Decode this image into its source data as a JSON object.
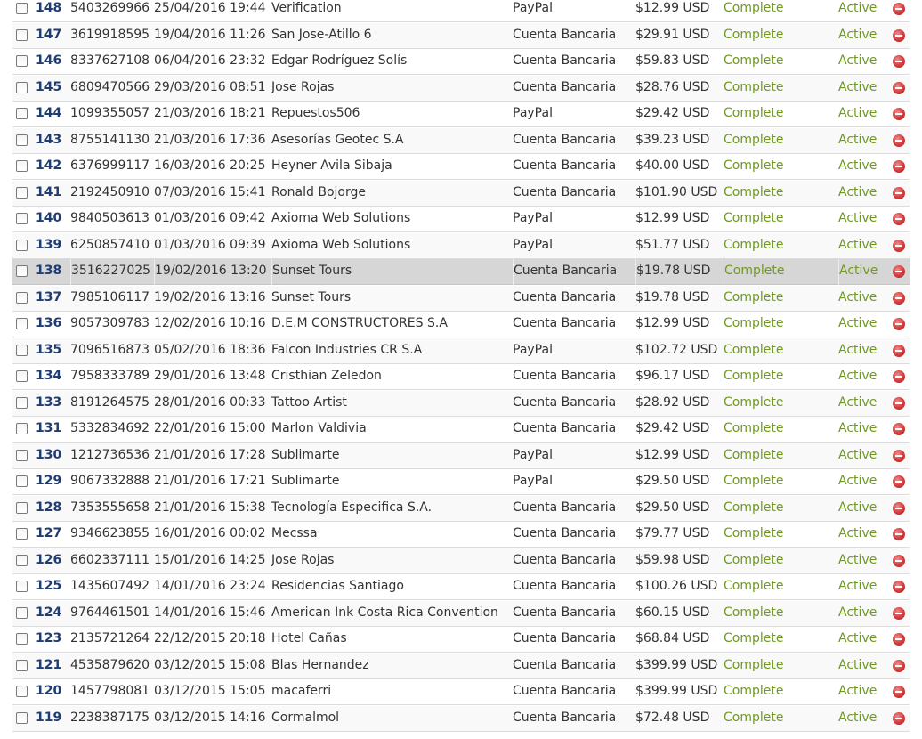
{
  "orders": {
    "rows": [
      {
        "id": "148",
        "number": "5403269966",
        "date": "25/04/2016 19:44",
        "client": "Verification",
        "method": "PayPal",
        "amount": "$12.99 USD",
        "status": "Complete",
        "active": "Active"
      },
      {
        "id": "147",
        "number": "3619918595",
        "date": "19/04/2016 11:26",
        "client": "San Jose-Atillo 6",
        "method": "Cuenta Bancaria",
        "amount": "$29.91 USD",
        "status": "Complete",
        "active": "Active"
      },
      {
        "id": "146",
        "number": "8337627108",
        "date": "06/04/2016 23:32",
        "client": "Edgar Rodríguez Solís",
        "method": "Cuenta Bancaria",
        "amount": "$59.83 USD",
        "status": "Complete",
        "active": "Active"
      },
      {
        "id": "145",
        "number": "6809470566",
        "date": "29/03/2016 08:51",
        "client": "Jose Rojas",
        "method": "Cuenta Bancaria",
        "amount": "$28.76 USD",
        "status": "Complete",
        "active": "Active"
      },
      {
        "id": "144",
        "number": "1099355057",
        "date": "21/03/2016 18:21",
        "client": "Repuestos506",
        "method": "PayPal",
        "amount": "$29.42 USD",
        "status": "Complete",
        "active": "Active"
      },
      {
        "id": "143",
        "number": "8755141130",
        "date": "21/03/2016 17:36",
        "client": "Asesorías Geotec S.A",
        "method": "Cuenta Bancaria",
        "amount": "$39.23 USD",
        "status": "Complete",
        "active": "Active"
      },
      {
        "id": "142",
        "number": "6376999117",
        "date": "16/03/2016 20:25",
        "client": "Heyner Avila Sibaja",
        "method": "Cuenta Bancaria",
        "amount": "$40.00 USD",
        "status": "Complete",
        "active": "Active"
      },
      {
        "id": "141",
        "number": "2192450910",
        "date": "07/03/2016 15:41",
        "client": "Ronald Bojorge",
        "method": "Cuenta Bancaria",
        "amount": "$101.90 USD",
        "status": "Complete",
        "active": "Active"
      },
      {
        "id": "140",
        "number": "9840503613",
        "date": "01/03/2016 09:42",
        "client": "Axioma Web Solutions",
        "method": "PayPal",
        "amount": "$12.99 USD",
        "status": "Complete",
        "active": "Active"
      },
      {
        "id": "139",
        "number": "6250857410",
        "date": "01/03/2016 09:39",
        "client": "Axioma Web Solutions",
        "method": "PayPal",
        "amount": "$51.77 USD",
        "status": "Complete",
        "active": "Active"
      },
      {
        "id": "138",
        "number": "3516227025",
        "date": "19/02/2016 13:20",
        "client": "Sunset Tours",
        "method": "Cuenta Bancaria",
        "amount": "$19.78 USD",
        "status": "Complete",
        "active": "Active",
        "highlighted": true
      },
      {
        "id": "137",
        "number": "7985106117",
        "date": "19/02/2016 13:16",
        "client": "Sunset Tours",
        "method": "Cuenta Bancaria",
        "amount": "$19.78 USD",
        "status": "Complete",
        "active": "Active"
      },
      {
        "id": "136",
        "number": "9057309783",
        "date": "12/02/2016 10:16",
        "client": "D.E.M CONSTRUCTORES S.A",
        "method": "Cuenta Bancaria",
        "amount": "$12.99 USD",
        "status": "Complete",
        "active": "Active"
      },
      {
        "id": "135",
        "number": "7096516873",
        "date": "05/02/2016 18:36",
        "client": "Falcon Industries CR S.A",
        "method": "PayPal",
        "amount": "$102.72 USD",
        "status": "Complete",
        "active": "Active"
      },
      {
        "id": "134",
        "number": "7958333789",
        "date": "29/01/2016 13:48",
        "client": "Cristhian Zeledon",
        "method": "Cuenta Bancaria",
        "amount": "$96.17 USD",
        "status": "Complete",
        "active": "Active"
      },
      {
        "id": "133",
        "number": "8191264575",
        "date": "28/01/2016 00:33",
        "client": "Tattoo Artist",
        "method": "Cuenta Bancaria",
        "amount": "$28.92 USD",
        "status": "Complete",
        "active": "Active"
      },
      {
        "id": "131",
        "number": "5332834692",
        "date": "22/01/2016 15:00",
        "client": "Marlon Valdivia",
        "method": "Cuenta Bancaria",
        "amount": "$29.42 USD",
        "status": "Complete",
        "active": "Active"
      },
      {
        "id": "130",
        "number": "1212736536",
        "date": "21/01/2016 17:28",
        "client": "Sublimarte",
        "method": "PayPal",
        "amount": "$12.99 USD",
        "status": "Complete",
        "active": "Active"
      },
      {
        "id": "129",
        "number": "9067332888",
        "date": "21/01/2016 17:21",
        "client": "Sublimarte",
        "method": "PayPal",
        "amount": "$29.50 USD",
        "status": "Complete",
        "active": "Active"
      },
      {
        "id": "128",
        "number": "7353555658",
        "date": "21/01/2016 15:38",
        "client": "Tecnología Especifica S.A.",
        "method": "Cuenta Bancaria",
        "amount": "$29.50 USD",
        "status": "Complete",
        "active": "Active"
      },
      {
        "id": "127",
        "number": "9346623855",
        "date": "16/01/2016 00:02",
        "client": "Mecssa",
        "method": "Cuenta Bancaria",
        "amount": "$79.77 USD",
        "status": "Complete",
        "active": "Active"
      },
      {
        "id": "126",
        "number": "6602337111",
        "date": "15/01/2016 14:25",
        "client": "Jose Rojas",
        "method": "Cuenta Bancaria",
        "amount": "$59.98 USD",
        "status": "Complete",
        "active": "Active"
      },
      {
        "id": "125",
        "number": "1435607492",
        "date": "14/01/2016 23:24",
        "client": "Residencias Santiago",
        "method": "Cuenta Bancaria",
        "amount": "$100.26 USD",
        "status": "Complete",
        "active": "Active"
      },
      {
        "id": "124",
        "number": "9764461501",
        "date": "14/01/2016 15:46",
        "client": "American Ink Costa Rica Convention",
        "method": "Cuenta Bancaria",
        "amount": "$60.15 USD",
        "status": "Complete",
        "active": "Active"
      },
      {
        "id": "123",
        "number": "2135721264",
        "date": "22/12/2015 20:18",
        "client": "Hotel Cañas",
        "method": "Cuenta Bancaria",
        "amount": "$68.84 USD",
        "status": "Complete",
        "active": "Active"
      },
      {
        "id": "121",
        "number": "4535879620",
        "date": "03/12/2015 15:08",
        "client": "Blas Hernandez",
        "method": "Cuenta Bancaria",
        "amount": "$399.99 USD",
        "status": "Complete",
        "active": "Active"
      },
      {
        "id": "120",
        "number": "1457798081",
        "date": "03/12/2015 15:05",
        "client": "macaferri",
        "method": "Cuenta Bancaria",
        "amount": "$399.99 USD",
        "status": "Complete",
        "active": "Active"
      },
      {
        "id": "119",
        "number": "2238387175",
        "date": "03/12/2015 14:16",
        "client": "Cormalmol",
        "method": "Cuenta Bancaria",
        "amount": "$72.48 USD",
        "status": "Complete",
        "active": "Active"
      }
    ],
    "icons": {
      "checkbox": "checkbox-icon",
      "delete": "delete-minus-icon"
    },
    "colors": {
      "id_text": "#1f3d75",
      "status_text": "#6f9a1f",
      "delete_icon": "#d23b3b",
      "highlight_row": "#d6d6d6"
    }
  }
}
